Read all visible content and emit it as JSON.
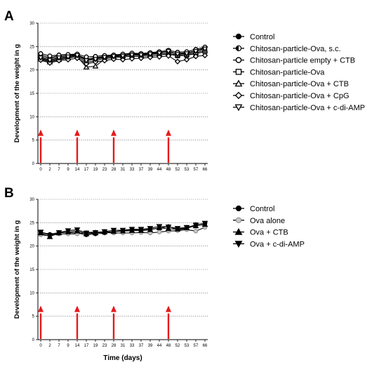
{
  "chart_data": [
    {
      "type": "line",
      "panel_label": "A",
      "ylabel": "Development of the weight in g",
      "xlabel": "",
      "ylim": [
        0,
        30
      ],
      "yticks": [
        0,
        5,
        10,
        15,
        20,
        25,
        30
      ],
      "categories": [
        "0",
        "2",
        "7",
        "9",
        "14",
        "17",
        "19",
        "23",
        "28",
        "31",
        "33",
        "37",
        "39",
        "44",
        "48",
        "52",
        "53",
        "57",
        "66"
      ],
      "arrows_at": [
        "0",
        "14",
        "28",
        "48"
      ],
      "arrow_color": "#e8191c",
      "grid": true,
      "legend_placement": "right",
      "series": [
        {
          "name": "Control",
          "marker": "circle-filled",
          "values": [
            22.8,
            22.4,
            22.8,
            23.0,
            23.2,
            22.4,
            22.6,
            22.9,
            23.1,
            23.3,
            23.5,
            23.4,
            23.6,
            23.8,
            23.8,
            23.5,
            23.7,
            24.0,
            24.8
          ]
        },
        {
          "name": "Chitosan-particle-Ova, s.c.",
          "marker": "circle-half",
          "values": [
            23.2,
            22.6,
            23.1,
            23.2,
            23.3,
            22.1,
            22.5,
            22.8,
            23.0,
            23.1,
            23.3,
            23.3,
            23.5,
            23.7,
            23.9,
            23.4,
            23.6,
            24.1,
            24.6
          ]
        },
        {
          "name": "Chitosan-particle empty + CTB",
          "marker": "circle-open",
          "values": [
            23.5,
            23.0,
            23.2,
            23.3,
            23.4,
            22.8,
            22.9,
            23.1,
            23.2,
            23.4,
            23.6,
            23.5,
            23.7,
            23.9,
            24.2,
            23.8,
            23.9,
            24.4,
            24.9
          ]
        },
        {
          "name": "Chitosan-particle-Ova",
          "marker": "square-open",
          "values": [
            22.5,
            21.9,
            22.4,
            22.6,
            22.9,
            21.6,
            22.0,
            22.5,
            22.6,
            22.8,
            22.9,
            22.9,
            23.0,
            23.2,
            23.4,
            23.0,
            23.1,
            23.5,
            23.9
          ]
        },
        {
          "name": "Chitosan-particle-Ova + CTB",
          "marker": "triangle-up-open",
          "values": [
            22.3,
            21.7,
            22.2,
            22.5,
            22.9,
            20.6,
            20.8,
            22.3,
            22.8,
            23.0,
            23.2,
            23.1,
            23.3,
            23.5,
            23.5,
            23.2,
            23.3,
            23.7,
            24.2
          ]
        },
        {
          "name": "Chitosan-particle-Ova + CpG",
          "marker": "diamond-open",
          "values": [
            22.1,
            21.5,
            22.0,
            22.2,
            22.5,
            21.3,
            21.7,
            22.0,
            22.3,
            22.2,
            22.4,
            22.5,
            22.7,
            22.8,
            23.0,
            21.8,
            22.2,
            22.9,
            23.1
          ]
        },
        {
          "name": "Chitosan-particle-Ova + c-di-AMP",
          "marker": "triangle-down-open",
          "values": [
            22.6,
            22.1,
            22.6,
            22.8,
            23.1,
            22.0,
            22.3,
            22.7,
            22.9,
            23.0,
            23.2,
            23.2,
            23.4,
            23.6,
            24.0,
            23.4,
            23.5,
            24.0,
            24.5
          ]
        }
      ]
    },
    {
      "type": "line",
      "panel_label": "B",
      "ylabel": "Development of the weight in g",
      "xlabel": "Time (days)",
      "ylim": [
        0,
        30
      ],
      "yticks": [
        0,
        5,
        10,
        15,
        20,
        25,
        30
      ],
      "categories": [
        "0",
        "2",
        "7",
        "9",
        "14",
        "17",
        "19",
        "23",
        "28",
        "31",
        "33",
        "37",
        "39",
        "44",
        "48",
        "52",
        "53",
        "57",
        "66"
      ],
      "arrows_at": [
        "0",
        "14",
        "28",
        "48"
      ],
      "arrow_color": "#e8191c",
      "grid": true,
      "legend_placement": "right",
      "series": [
        {
          "name": "Control",
          "marker": "circle-filled",
          "values": [
            23.0,
            22.5,
            22.9,
            22.9,
            22.8,
            22.4,
            22.6,
            22.8,
            23.1,
            23.3,
            23.5,
            23.4,
            23.6,
            23.8,
            24.2,
            23.5,
            23.7,
            24.6,
            24.8
          ]
        },
        {
          "name": "Ova alone",
          "marker": "circle-grey",
          "values": [
            22.4,
            22.2,
            22.6,
            22.6,
            22.6,
            22.9,
            23.0,
            22.9,
            22.8,
            22.8,
            22.8,
            22.9,
            22.8,
            23.0,
            23.2,
            23.3,
            23.5,
            23.2,
            24.0
          ]
        },
        {
          "name": "Ova + CTB",
          "marker": "triangle-up-filled",
          "values": [
            22.8,
            22.0,
            22.8,
            23.0,
            23.2,
            22.6,
            22.8,
            23.0,
            23.1,
            23.2,
            23.3,
            23.3,
            23.5,
            23.9,
            23.7,
            23.6,
            23.9,
            24.3,
            24.6
          ]
        },
        {
          "name": "Ova + c-di-AMP",
          "marker": "triangle-down-filled",
          "values": [
            23.0,
            22.3,
            22.9,
            23.3,
            23.5,
            22.8,
            22.9,
            23.1,
            23.4,
            23.4,
            23.6,
            23.6,
            23.8,
            24.2,
            24.1,
            23.8,
            24.0,
            24.5,
            24.9
          ]
        }
      ]
    }
  ]
}
